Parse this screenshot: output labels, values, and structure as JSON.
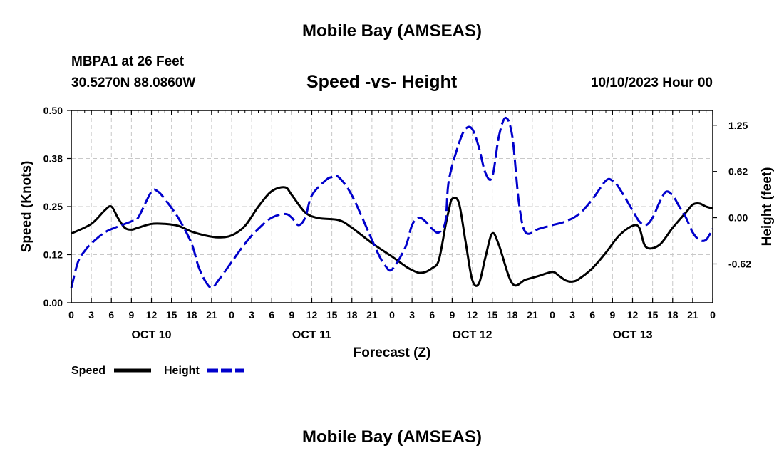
{
  "chart_data": {
    "type": "line",
    "title": "Mobile Bay (AMSEAS)",
    "title_repeat": "Mobile Bay (AMSEAS)",
    "station": "MBPA1 at 26 Feet",
    "coordinates": "30.5270N  88.0860W",
    "subtitle": "Speed -vs- Height",
    "run_time": "10/10/2023 Hour 00",
    "xlabel": "Forecast (Z)",
    "ylabel_left": "Speed (Knots)",
    "ylabel_right": "Height (feet)",
    "x_range_hours": [
      0,
      96
    ],
    "x_tick_hours": [
      0,
      3,
      6,
      9,
      12,
      15,
      18,
      21,
      24,
      27,
      30,
      33,
      36,
      39,
      42,
      45,
      48,
      51,
      54,
      57,
      60,
      63,
      66,
      69,
      72,
      75,
      78,
      81,
      84,
      87,
      90,
      93,
      96
    ],
    "x_tick_labels": [
      "0",
      "3",
      "6",
      "9",
      "12",
      "15",
      "18",
      "21",
      "0",
      "3",
      "6",
      "9",
      "12",
      "15",
      "18",
      "21",
      "0",
      "3",
      "6",
      "9",
      "12",
      "15",
      "18",
      "21",
      "0",
      "3",
      "6",
      "9",
      "12",
      "15",
      "18",
      "21",
      "0"
    ],
    "day_labels": [
      {
        "label": "OCT 10",
        "hour": 12
      },
      {
        "label": "OCT 11",
        "hour": 36
      },
      {
        "label": "OCT 12",
        "hour": 60
      },
      {
        "label": "OCT 13",
        "hour": 84
      }
    ],
    "left_axis": {
      "min": 0,
      "max": 0.5,
      "ticks": [
        0,
        0.125,
        0.25,
        0.375,
        0.5
      ],
      "tick_labels": [
        "0.00",
        "0.12",
        "0.25",
        "0.38",
        "0.50"
      ]
    },
    "right_axis": {
      "min": -1.15,
      "max": 1.45,
      "ticks": [
        -0.625,
        0,
        0.625,
        1.25
      ],
      "tick_labels": [
        "-0.62",
        "0.00",
        "0.62",
        "1.25"
      ]
    },
    "grid": true,
    "legend_position": "bottom-left",
    "series": [
      {
        "name": "Speed",
        "axis": "left",
        "color": "#000000",
        "dash": "solid",
        "x": [
          0,
          3,
          5,
          6,
          7,
          8,
          9,
          10,
          12,
          14,
          16,
          18,
          20,
          22,
          24,
          26,
          28,
          30,
          32,
          33,
          35,
          37,
          40,
          42,
          45,
          48,
          50,
          51,
          52,
          53,
          54,
          55,
          56,
          56.5,
          57,
          58,
          59,
          60,
          61,
          62,
          63,
          64,
          66,
          68,
          70,
          72,
          73,
          74,
          75,
          76,
          78,
          80,
          82,
          84,
          85,
          86,
          88,
          90,
          92,
          93,
          94,
          95,
          96
        ],
        "y": [
          0.18,
          0.205,
          0.24,
          0.25,
          0.22,
          0.195,
          0.19,
          0.195,
          0.205,
          0.205,
          0.2,
          0.185,
          0.175,
          0.17,
          0.175,
          0.2,
          0.25,
          0.29,
          0.3,
          0.28,
          0.235,
          0.22,
          0.215,
          0.195,
          0.155,
          0.12,
          0.095,
          0.085,
          0.078,
          0.08,
          0.09,
          0.11,
          0.2,
          0.24,
          0.27,
          0.26,
          0.16,
          0.06,
          0.05,
          0.12,
          0.18,
          0.15,
          0.05,
          0.06,
          0.07,
          0.08,
          0.07,
          0.058,
          0.055,
          0.062,
          0.09,
          0.13,
          0.175,
          0.2,
          0.195,
          0.145,
          0.15,
          0.195,
          0.235,
          0.255,
          0.258,
          0.25,
          0.245
        ]
      },
      {
        "name": "Height",
        "axis": "right",
        "color": "#0000cc",
        "dash": "dashed",
        "x": [
          0,
          1,
          2,
          3,
          5,
          7,
          9,
          10,
          12,
          13,
          14,
          16,
          18,
          19,
          20,
          21,
          22,
          24,
          26,
          28,
          30,
          32,
          33,
          34,
          35,
          36,
          38,
          39,
          40,
          42,
          45,
          46,
          47,
          48,
          50,
          51,
          52,
          53,
          54,
          55,
          56,
          56.5,
          58,
          59,
          60,
          61,
          62,
          63,
          64,
          65,
          66,
          67,
          68,
          70,
          72,
          74,
          76,
          78,
          80,
          81,
          82,
          84,
          85,
          86,
          87,
          88,
          89,
          90,
          91,
          92,
          93,
          94,
          95,
          96
        ],
        "y": [
          -0.95,
          -0.6,
          -0.45,
          -0.35,
          -0.2,
          -0.12,
          -0.05,
          0.0,
          0.35,
          0.35,
          0.25,
          0.0,
          -0.35,
          -0.65,
          -0.85,
          -0.95,
          -0.85,
          -0.6,
          -0.35,
          -0.15,
          0.0,
          0.05,
          0.0,
          -0.1,
          0.0,
          0.3,
          0.5,
          0.55,
          0.55,
          0.3,
          -0.3,
          -0.5,
          -0.65,
          -0.7,
          -0.4,
          -0.1,
          0.0,
          -0.05,
          -0.15,
          -0.2,
          -0.05,
          0.5,
          1.0,
          1.2,
          1.2,
          0.95,
          0.6,
          0.55,
          1.1,
          1.35,
          1.1,
          0.2,
          -0.2,
          -0.15,
          -0.1,
          -0.05,
          0.05,
          0.25,
          0.5,
          0.5,
          0.4,
          0.1,
          -0.05,
          -0.1,
          0.0,
          0.2,
          0.35,
          0.3,
          0.15,
          0.0,
          -0.2,
          -0.3,
          -0.3,
          -0.15
        ]
      }
    ]
  }
}
